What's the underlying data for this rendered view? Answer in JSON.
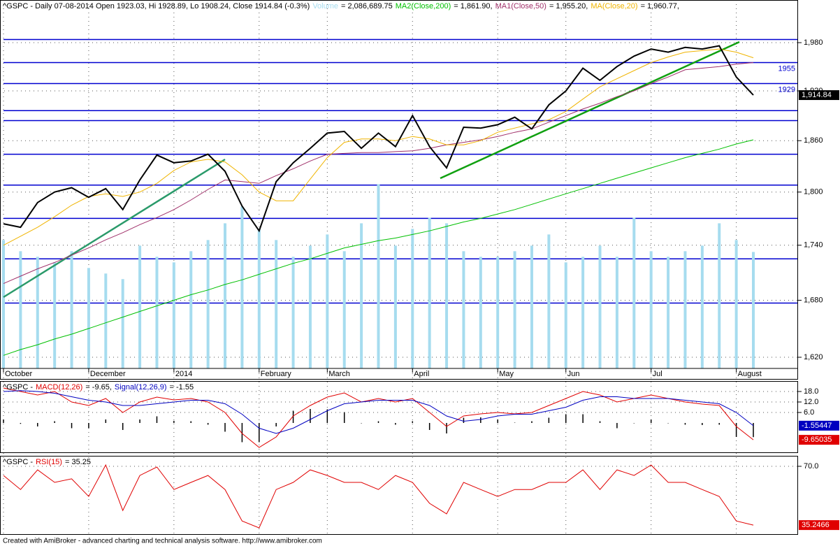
{
  "chart_data": [
    {
      "type": "line",
      "title": "^GSPC - Daily 07-08-2014 Open 1923.03, Hi 1928.89, Lo 1908.24, Close 1914.84 (-0.3%)",
      "log_scale": true,
      "grid": true,
      "categories": [
        "October",
        null,
        null,
        null,
        null,
        "December",
        null,
        null,
        null,
        null,
        "2014",
        null,
        null,
        null,
        null,
        "February",
        null,
        null,
        null,
        "March",
        null,
        null,
        null,
        null,
        "April",
        null,
        null,
        null,
        null,
        "May",
        null,
        null,
        null,
        "Jun",
        null,
        null,
        null,
        null,
        "Jul",
        null,
        null,
        null,
        null,
        "August",
        null
      ],
      "ylim": [
        1608.5,
        2034.6
      ],
      "yticks": [
        {
          "value": 1980,
          "label": "1,980"
        },
        {
          "value": 1920,
          "label": "1,920"
        },
        {
          "value": 1860,
          "label": "1,860"
        },
        {
          "value": 1800,
          "label": "1,800"
        },
        {
          "value": 1740,
          "label": "1,740"
        },
        {
          "value": 1680,
          "label": "1,680"
        },
        {
          "value": 1620,
          "label": "1,620"
        }
      ],
      "volume_ylim": [
        0,
        6600000
      ],
      "levels": [
        1984,
        1955,
        1929,
        1896,
        1884,
        1844,
        1808,
        1770,
        1725,
        1677
      ],
      "level_labels": [
        null,
        "1955",
        "1929",
        null,
        null,
        null,
        null,
        null,
        null,
        null
      ],
      "level_color": "#0000d0",
      "series": [
        {
          "name": "Volume",
          "legend_text": "= 2,086,689.75",
          "style": "bar",
          "axis": "volume",
          "color": "#a6dcef",
          "values": [
            2300000,
            2100000,
            2000000,
            1900000,
            2100000,
            1800000,
            1700000,
            1600000,
            2200000,
            2000000,
            1900000,
            2100000,
            2300000,
            2600000,
            2900000,
            2500000,
            2300000,
            2000000,
            2200000,
            2400000,
            2100000,
            2600000,
            3300000,
            2200000,
            2500000,
            2700000,
            2600000,
            2100000,
            2000000,
            2000000,
            2100000,
            2200000,
            2400000,
            1900000,
            2000000,
            2200000,
            2000000,
            2700000,
            2100000,
            2000000,
            2100000,
            2200000,
            2600000,
            2300000,
            2086689.75
          ]
        },
        {
          "name": "MA2(Close,200)",
          "legend_text": "= 1,861.90,",
          "style": "line",
          "color": "#00c000",
          "values": [
            1622,
            1628,
            1633,
            1639,
            1644,
            1650,
            1656,
            1662,
            1668,
            1674,
            1680,
            1686,
            1691,
            1697,
            1702,
            1708,
            1714,
            1720,
            1725,
            1731,
            1737,
            1741,
            1745,
            1748,
            1752,
            1756,
            1761,
            1766,
            1770,
            1775,
            1780,
            1786,
            1792,
            1798,
            1804,
            1810,
            1816,
            1822,
            1828,
            1834,
            1840,
            1845,
            1850,
            1856,
            1861
          ]
        },
        {
          "name": "MA1(Close,50)",
          "legend_text": "= 1,955.20,",
          "style": "line",
          "color": "#a0306a",
          "values": [
            1698,
            1706,
            1714,
            1721,
            1729,
            1737,
            1746,
            1754,
            1763,
            1771,
            1780,
            1791,
            1803,
            1814,
            1812,
            1810,
            1819,
            1827,
            1836,
            1844,
            1845,
            1846,
            1846,
            1847,
            1848,
            1851,
            1855,
            1858,
            1861,
            1865,
            1870,
            1874,
            1882,
            1890,
            1898,
            1905,
            1913,
            1920,
            1929,
            1937,
            1946,
            1948,
            1950,
            1953,
            1955
          ]
        },
        {
          "name": "MA(Close,20)",
          "legend_text": "= 1,960.77,",
          "style": "line",
          "color": "#f0b400",
          "values": [
            1740,
            1750,
            1760,
            1772,
            1785,
            1795,
            1798,
            1795,
            1800,
            1810,
            1825,
            1835,
            1838,
            1835,
            1820,
            1800,
            1790,
            1790,
            1815,
            1840,
            1858,
            1862,
            1862,
            1860,
            1865,
            1862,
            1855,
            1855,
            1860,
            1870,
            1875,
            1880,
            1885,
            1895,
            1910,
            1925,
            1935,
            1945,
            1955,
            1962,
            1968,
            1970,
            1972,
            1968,
            1961
          ]
        },
        {
          "style": "line",
          "color": "#000000",
          "width": 2,
          "last_label": "1,914.84",
          "values": [
            1764,
            1760,
            1788,
            1800,
            1805,
            1794,
            1804,
            1780,
            1814,
            1843,
            1834,
            1836,
            1844,
            1824,
            1784,
            1756,
            1812,
            1834,
            1851,
            1869,
            1871,
            1851,
            1869,
            1853,
            1890,
            1853,
            1828,
            1876,
            1875,
            1879,
            1888,
            1874,
            1903,
            1920,
            1948,
            1933,
            1950,
            1963,
            1972,
            1968,
            1974,
            1972,
            1976,
            1937,
            1914.84
          ]
        }
      ]
    },
    {
      "type": "line",
      "title": "^GSPC -",
      "grid": true,
      "ylim": [
        -17.2,
        24
      ],
      "yticks": [
        {
          "value": 18,
          "label": "18.0"
        },
        {
          "value": 12,
          "label": "12.0"
        },
        {
          "value": 6,
          "label": "6.0"
        }
      ],
      "series": [
        {
          "style": "histogram",
          "color": "#000000",
          "values": [
            2,
            -0.5,
            -2,
            1,
            -3,
            -3,
            2,
            -4,
            2,
            3.8,
            1.2,
            1,
            -1,
            -5,
            -11,
            -11,
            -2,
            7,
            8,
            7.8,
            6.2,
            0,
            1,
            -1,
            1,
            -4,
            -6,
            3,
            3.2,
            2,
            0.2,
            1,
            3,
            5,
            5,
            1,
            -3,
            0,
            2,
            0,
            -1,
            -1.2,
            -1,
            -8,
            -8.1
          ]
        },
        {
          "name": "MACD(12,26)",
          "legend_text": "= -9.65,",
          "style": "line",
          "color": "#e00000",
          "last_label": "-9.65035",
          "values": [
            20,
            18,
            16,
            18,
            12,
            10,
            14,
            6,
            12,
            14.8,
            13.2,
            14,
            12,
            6,
            -6,
            -14,
            -8,
            4,
            10,
            14.8,
            17.2,
            12,
            14,
            12,
            14,
            6,
            -2,
            4,
            5.2,
            6,
            5.2,
            6,
            10,
            14,
            18,
            16,
            12,
            14,
            16,
            14,
            12,
            10.8,
            10,
            -2,
            -9.65035
          ]
        },
        {
          "name": "Signal(12,26,9)",
          "legend_text": "= -1.55",
          "style": "line",
          "color": "#0000c0",
          "last_label": "-1.55447",
          "values": [
            18,
            18.5,
            18,
            17,
            15,
            13,
            12,
            10,
            10,
            11,
            12,
            13,
            13,
            11,
            5,
            -3,
            -6,
            -3,
            2,
            7,
            11,
            12,
            13,
            13,
            13,
            10,
            4,
            1,
            2,
            4,
            5,
            5,
            7,
            9,
            13,
            15,
            15,
            14,
            14,
            14,
            13,
            12,
            11,
            6,
            -1.55447
          ]
        }
      ]
    },
    {
      "type": "line",
      "title": "^GSPC -",
      "grid": true,
      "ylim": [
        29.5,
        76.2
      ],
      "yticks": [
        {
          "value": 70,
          "label": "70.0"
        }
      ],
      "series": [
        {
          "name": "RSI(15)",
          "legend_text": "= 35.25",
          "style": "line",
          "color": "#e00000",
          "last_label": "35.2466",
          "values": [
            64.6,
            56.3,
            67.9,
            60.5,
            62.6,
            52.2,
            70.8,
            43.9,
            64.6,
            69.6,
            56.3,
            60.5,
            64.6,
            56.3,
            37.7,
            33.6,
            56.3,
            60.5,
            67.9,
            64.6,
            60.5,
            60.5,
            56.3,
            64.6,
            60.5,
            48.1,
            41.9,
            60.5,
            56.3,
            52.2,
            56.3,
            56.3,
            60.5,
            60.5,
            67.9,
            56.3,
            67.9,
            64.6,
            70.8,
            60.5,
            60.5,
            56.3,
            52.2,
            37.7,
            35.2466
          ]
        }
      ]
    }
  ],
  "footer": "Created with AmiBroker - advanced charting and technical analysis software. http://www.amibroker.com"
}
